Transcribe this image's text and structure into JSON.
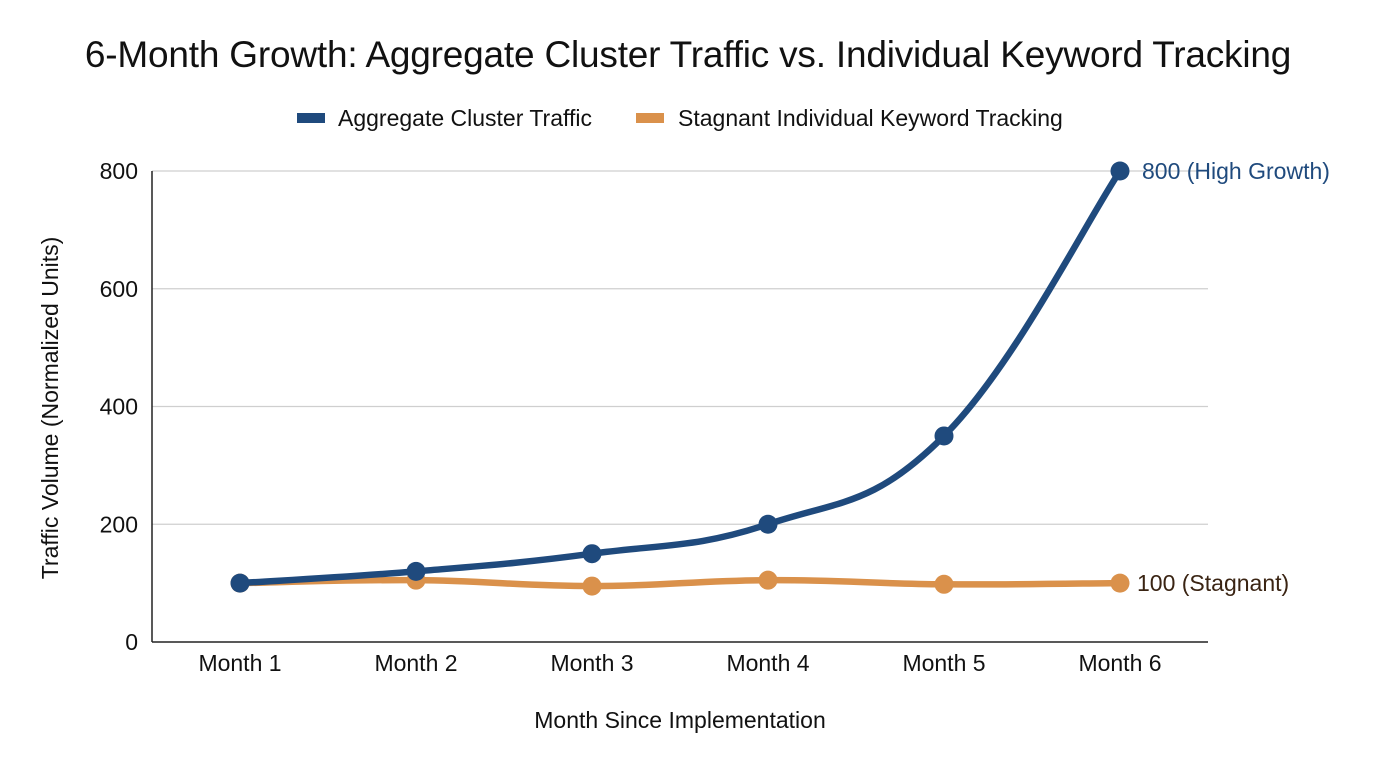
{
  "chart_data": {
    "type": "line",
    "title": "6-Month Growth: Aggregate Cluster Traffic vs. Individual Keyword Tracking",
    "xlabel": "Month Since Implementation",
    "ylabel": "Traffic Volume (Normalized Units)",
    "categories": [
      "Month 1",
      "Month 2",
      "Month 3",
      "Month 4",
      "Month 5",
      "Month 6"
    ],
    "ylim": [
      0,
      800
    ],
    "yticks": [
      0,
      200,
      400,
      600,
      800
    ],
    "grid": true,
    "legend_position": "top-center",
    "series": [
      {
        "name": "Aggregate Cluster Traffic",
        "color": "#1f4a7d",
        "values": [
          100,
          120,
          150,
          200,
          350,
          800
        ],
        "end_label": "800 (High Growth)"
      },
      {
        "name": "Stagnant Individual Keyword Tracking",
        "color": "#da914b",
        "values": [
          100,
          105,
          95,
          105,
          98,
          100
        ],
        "end_label": "100 (Stagnant)"
      }
    ]
  }
}
